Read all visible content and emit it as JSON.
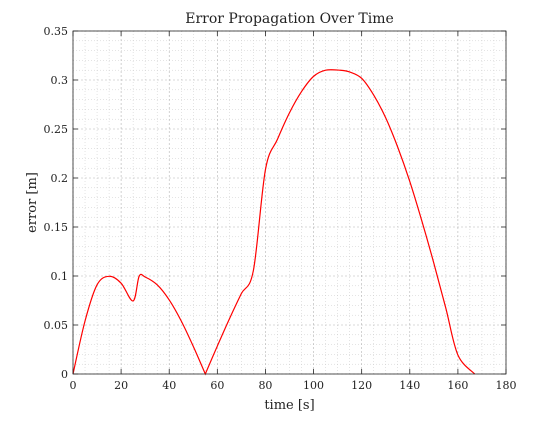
{
  "chart_data": {
    "type": "line",
    "title": "Error Propagation Over Time",
    "xlabel": "time [s]",
    "ylabel": "error [m]",
    "xlim": [
      0,
      180
    ],
    "ylim": [
      0,
      0.35
    ],
    "x_ticks": [
      0,
      20,
      40,
      60,
      80,
      100,
      120,
      140,
      160,
      180
    ],
    "x_tick_labels": [
      "0",
      "20",
      "40",
      "60",
      "80",
      "100",
      "120",
      "140",
      "160",
      "180"
    ],
    "y_ticks": [
      0,
      0.05,
      0.1,
      0.15,
      0.2,
      0.25,
      0.3,
      0.35
    ],
    "y_tick_labels": [
      "0",
      "0.05",
      "0.1",
      "0.15",
      "0.2",
      "0.25",
      "0.3",
      "0.35"
    ],
    "grid": true,
    "minor_grid": true,
    "legend": "none",
    "series": [
      {
        "color": "#ff0000",
        "x": [
          0,
          5,
          10,
          15,
          20,
          25,
          27.5,
          30,
          35,
          40,
          45,
          50,
          55,
          60,
          65,
          70,
          75,
          80,
          85,
          90,
          95,
          100,
          105,
          111,
          115,
          120,
          125,
          130,
          135,
          140,
          145,
          150,
          155,
          160,
          167
        ],
        "y": [
          0,
          0.0541,
          0.091,
          0.0997,
          0.0927,
          0.0746,
          0.0998,
          0.099,
          0.091,
          0.0756,
          0.0541,
          0.0282,
          0,
          0.0285,
          0.0561,
          0.0821,
          0.1058,
          0.2085,
          0.2395,
          0.2666,
          0.2882,
          0.3037,
          0.31,
          0.31,
          0.3082,
          0.3017,
          0.2846,
          0.2613,
          0.2314,
          0.1965,
          0.1563,
          0.1131,
          0.067,
          0.0194,
          0
        ]
      }
    ]
  }
}
